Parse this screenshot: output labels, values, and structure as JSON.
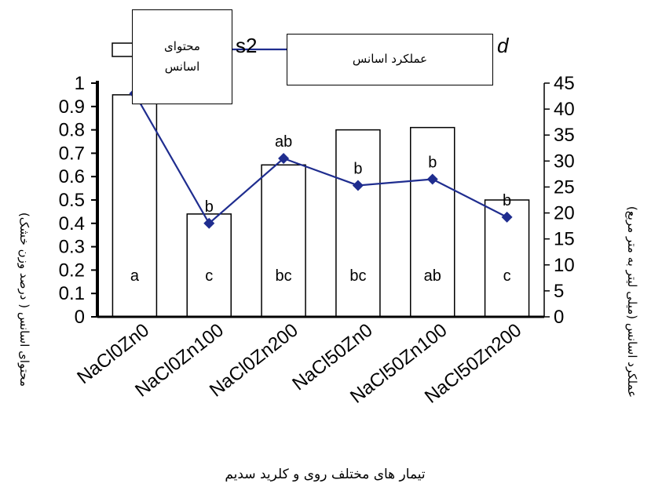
{
  "chart_data": {
    "type": "bar+line",
    "categories": [
      "NaCl0Zn0",
      "NaCl0Zn100",
      "NaCl0Zn200",
      "NaCl50Zn0",
      "NaCl50Zn100",
      "NaCl50Zn200"
    ],
    "series": [
      {
        "name": "محتوای اسانس",
        "type": "bar",
        "axis": "left",
        "values": [
          0.95,
          0.44,
          0.65,
          0.8,
          0.81,
          0.5
        ],
        "labels": [
          "a",
          "c",
          "bc",
          "bc",
          "ab",
          "c"
        ]
      },
      {
        "name": "عملکرد اسانس",
        "type": "line",
        "axis": "right",
        "values": [
          43,
          18,
          30.5,
          25.3,
          26.5,
          19.2
        ],
        "labels": [
          "",
          "b",
          "ab",
          "b",
          "b",
          "b"
        ]
      }
    ],
    "xlabel": "تیمار های مختلف روی و کلرید سدیم",
    "ylabel_left": "محتوای اسانس ( درصد وزن خشک)",
    "ylabel_right": "عملکرد اسانس (میلی لیتر به متر مربع)",
    "ylim_left": [
      0,
      1
    ],
    "ylim_right": [
      0,
      45
    ],
    "yticks_left": [
      "0",
      "0.1",
      "0.2",
      "0.3",
      "0.4",
      "0.5",
      "0.6",
      "0.7",
      "0.8",
      "0.9",
      "1"
    ],
    "yticks_right": [
      "0",
      "5",
      "10",
      "15",
      "20",
      "25",
      "30",
      "35",
      "40",
      "45"
    ],
    "grid": false,
    "legend_position": "top",
    "colors": {
      "bar_fill": "#ffffff",
      "bar_stroke": "#000000",
      "line": "#1f2d8f",
      "marker": "#1f2d8f"
    }
  },
  "legend": {
    "bar_box_line1": "محتوای",
    "bar_box_line2": "اسانس",
    "line_box": "عملکرد اسانس",
    "fragment_s2": "s2",
    "fragment_d": "d"
  }
}
